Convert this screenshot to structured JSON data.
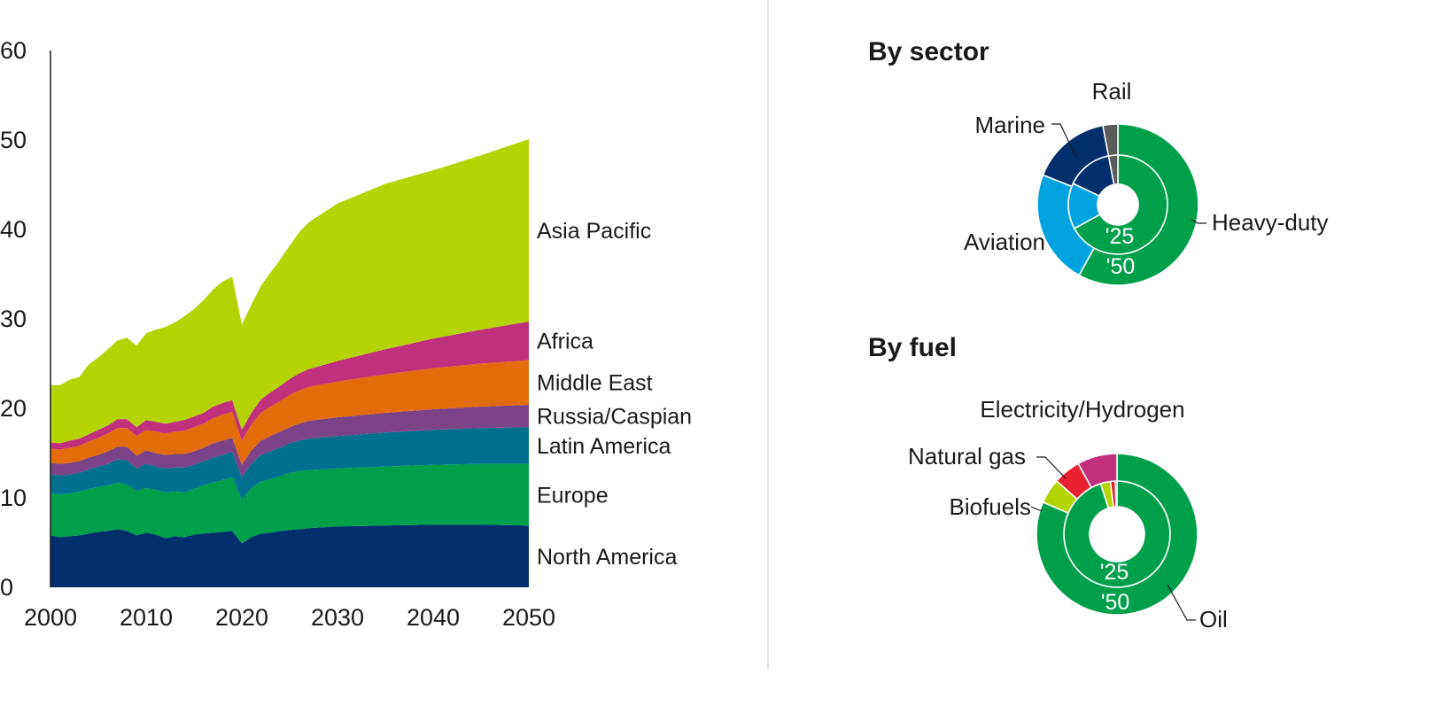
{
  "colors": {
    "North America": "#002f6c",
    "Europe": "#00a04b",
    "Latin America": "#00708f",
    "Russia/Caspian": "#7b4287",
    "Middle East": "#e36c0a",
    "Africa": "#c1307d",
    "Asia Pacific": "#b5d405",
    "Heavy-duty": "#00a04b",
    "Aviation": "#00a3e0",
    "Marine": "#002f6c",
    "Rail": "#5a5a5a",
    "Oil": "#00a04b",
    "Biofuels": "#b5d405",
    "Natural gas": "#e8202f",
    "Electricity/Hydrogen": "#c1307d"
  },
  "chart_data": [
    {
      "type": "area",
      "stacked": true,
      "xlim": [
        2000,
        2050
      ],
      "ylim": [
        0,
        60
      ],
      "x_ticks": [
        "2000",
        "2010",
        "2020",
        "2030",
        "2040",
        "2050"
      ],
      "y_ticks": [
        "0",
        "10",
        "20",
        "30",
        "40",
        "50",
        "60"
      ],
      "grid": false,
      "legend": "labels at right end of areas",
      "x": [
        2000,
        2001,
        2002,
        2003,
        2004,
        2005,
        2006,
        2007,
        2008,
        2009,
        2010,
        2011,
        2012,
        2013,
        2014,
        2015,
        2016,
        2017,
        2018,
        2019,
        2020,
        2021,
        2022,
        2023,
        2024,
        2025,
        2026,
        2027,
        2030,
        2035,
        2040,
        2045,
        2050
      ],
      "series": [
        {
          "name": "North America",
          "values": [
            5.8,
            5.6,
            5.7,
            5.8,
            6.0,
            6.2,
            6.3,
            6.5,
            6.3,
            5.8,
            6.1,
            5.9,
            5.5,
            5.7,
            5.6,
            5.9,
            6.0,
            6.1,
            6.2,
            6.3,
            4.9,
            5.6,
            6.0,
            6.1,
            6.3,
            6.4,
            6.5,
            6.6,
            6.8,
            6.9,
            7.0,
            7.0,
            6.9
          ]
        },
        {
          "name": "Europe",
          "values": [
            4.7,
            4.8,
            4.8,
            4.9,
            5.0,
            5.0,
            5.1,
            5.2,
            5.2,
            5.0,
            5.0,
            5.0,
            5.1,
            5.0,
            5.0,
            5.1,
            5.4,
            5.6,
            5.8,
            6.0,
            4.9,
            5.5,
            5.8,
            6.0,
            6.1,
            6.4,
            6.5,
            6.5,
            6.5,
            6.6,
            6.7,
            6.8,
            6.9
          ]
        },
        {
          "name": "Latin America",
          "values": [
            2.1,
            2.1,
            2.1,
            2.1,
            2.2,
            2.3,
            2.4,
            2.6,
            2.7,
            2.5,
            2.7,
            2.6,
            2.7,
            2.7,
            2.8,
            2.7,
            2.7,
            2.8,
            2.8,
            2.8,
            2.5,
            2.7,
            3.0,
            3.1,
            3.2,
            3.3,
            3.4,
            3.5,
            3.6,
            3.8,
            3.9,
            4.0,
            4.1
          ]
        },
        {
          "name": "Russia/Caspian",
          "values": [
            1.3,
            1.3,
            1.3,
            1.3,
            1.3,
            1.3,
            1.4,
            1.4,
            1.5,
            1.4,
            1.5,
            1.5,
            1.5,
            1.5,
            1.5,
            1.5,
            1.5,
            1.6,
            1.6,
            1.6,
            1.4,
            1.5,
            1.6,
            1.7,
            1.8,
            1.8,
            1.9,
            2.0,
            2.1,
            2.2,
            2.3,
            2.4,
            2.5
          ]
        },
        {
          "name": "Middle East",
          "values": [
            1.6,
            1.6,
            1.7,
            1.7,
            1.8,
            1.9,
            2.0,
            2.1,
            2.1,
            2.2,
            2.3,
            2.4,
            2.4,
            2.5,
            2.6,
            2.7,
            2.7,
            2.8,
            2.9,
            2.9,
            2.7,
            2.9,
            3.1,
            3.3,
            3.4,
            3.6,
            3.7,
            3.8,
            4.0,
            4.3,
            4.6,
            4.8,
            5.0
          ]
        },
        {
          "name": "Africa",
          "values": [
            0.7,
            0.7,
            0.8,
            0.8,
            0.8,
            0.9,
            0.9,
            1.0,
            1.0,
            1.0,
            1.1,
            1.1,
            1.1,
            1.1,
            1.2,
            1.2,
            1.2,
            1.3,
            1.3,
            1.3,
            1.2,
            1.3,
            1.5,
            1.6,
            1.7,
            1.8,
            1.9,
            2.0,
            2.3,
            2.8,
            3.3,
            3.8,
            4.3
          ]
        },
        {
          "name": "Asia Pacific",
          "values": [
            6.4,
            6.5,
            6.8,
            6.9,
            7.8,
            8.1,
            8.5,
            8.8,
            9.1,
            9.1,
            9.7,
            10.3,
            10.8,
            11.1,
            11.6,
            12.0,
            12.6,
            13.1,
            13.6,
            13.8,
            11.8,
            12.1,
            12.7,
            13.4,
            14.1,
            14.9,
            15.8,
            16.4,
            17.6,
            18.5,
            18.8,
            19.5,
            20.4
          ]
        }
      ]
    },
    {
      "type": "pie",
      "title": "By sector",
      "rings": [
        "'25",
        "'50"
      ],
      "categories": [
        "Heavy-duty",
        "Aviation",
        "Marine",
        "Rail"
      ],
      "series": [
        {
          "name": "'25",
          "values": [
            67,
            15,
            15,
            3
          ]
        },
        {
          "name": "'50",
          "values": [
            58,
            23,
            16,
            3
          ]
        }
      ]
    },
    {
      "type": "pie",
      "title": "By fuel",
      "rings": [
        "'25",
        "'50"
      ],
      "categories": [
        "Oil",
        "Biofuels",
        "Natural gas",
        "Electricity/Hydrogen"
      ],
      "series": [
        {
          "name": "'25",
          "values": [
            95,
            3,
            1.5,
            0.5
          ]
        },
        {
          "name": "'50",
          "values": [
            81.5,
            5,
            5.5,
            8
          ]
        }
      ]
    }
  ]
}
